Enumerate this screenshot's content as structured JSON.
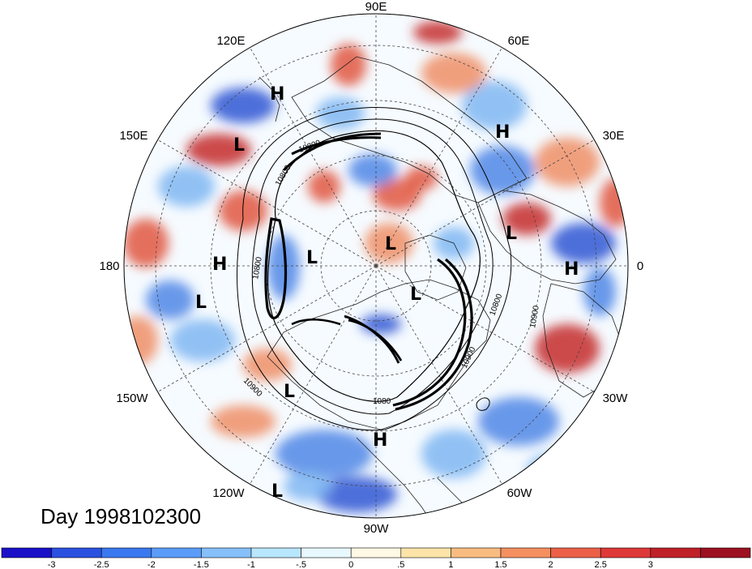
{
  "figure": {
    "day_label": "Day 1998102300"
  },
  "longitude_labels": [
    "90E",
    "60E",
    "30E",
    "0",
    "30W",
    "60W",
    "90W",
    "120W",
    "150W",
    "180",
    "150E",
    "120E"
  ],
  "pressure_centers": [
    {
      "type": "H",
      "label": "H"
    },
    {
      "type": "L",
      "label": "L"
    },
    {
      "type": "H",
      "label": "H"
    },
    {
      "type": "L",
      "label": "L"
    },
    {
      "type": "H",
      "label": "H"
    },
    {
      "type": "L",
      "label": "L"
    },
    {
      "type": "L",
      "label": "L"
    },
    {
      "type": "L",
      "label": "L"
    },
    {
      "type": "H",
      "label": "H"
    },
    {
      "type": "L",
      "label": "L"
    },
    {
      "type": "L",
      "label": "L"
    },
    {
      "type": "H",
      "label": "H"
    },
    {
      "type": "L",
      "label": "L"
    }
  ],
  "contour_labels": [
    "10800",
    "10800",
    "10800",
    "10900",
    "10900",
    "10900",
    "10800",
    "1080"
  ],
  "colorbar": {
    "colors": [
      "#1a10c8",
      "#2a50e0",
      "#3a78f0",
      "#5a9cf8",
      "#86c0fb",
      "#b8e6fd",
      "#e8f8ff",
      "#fff8e4",
      "#fde4a8",
      "#f9bc80",
      "#f49060",
      "#ec6048",
      "#de3838",
      "#c02028",
      "#9c1020"
    ],
    "tick_labels": [
      "-3",
      "-2.5",
      "-2",
      "-1.5",
      "-1",
      "-.5",
      "0",
      ".5",
      "1",
      "1.5",
      "2",
      "2.5",
      "3"
    ]
  }
}
